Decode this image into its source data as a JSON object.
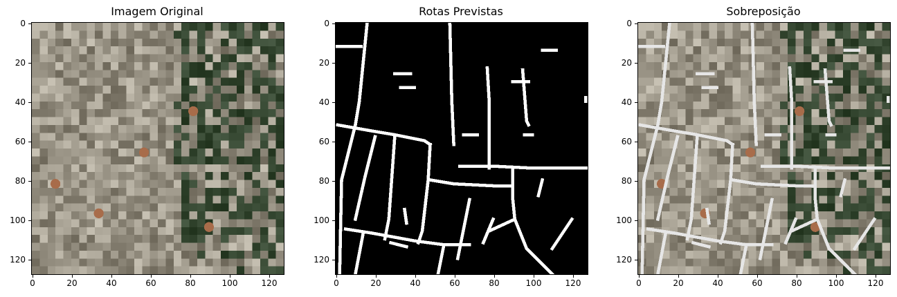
{
  "figure": {
    "panels": [
      {
        "id": "original",
        "title": "Imagem Original"
      },
      {
        "id": "predicted",
        "title": "Rotas Previstas"
      },
      {
        "id": "overlay",
        "title": "Sobreposição"
      }
    ],
    "image_size": [
      128,
      128
    ],
    "x_ticks": [
      "0",
      "20",
      "40",
      "60",
      "80",
      "100",
      "120"
    ],
    "y_ticks": [
      "0",
      "20",
      "40",
      "60",
      "80",
      "100",
      "120"
    ],
    "tick_values": [
      0,
      20,
      40,
      60,
      80,
      100,
      120
    ],
    "colors": {
      "road": "#ffffff",
      "background": "#000000",
      "urban_dense": "#8a8577",
      "vegetation": "#3b4a33",
      "overlay_road": "#e6e6e6"
    }
  }
}
